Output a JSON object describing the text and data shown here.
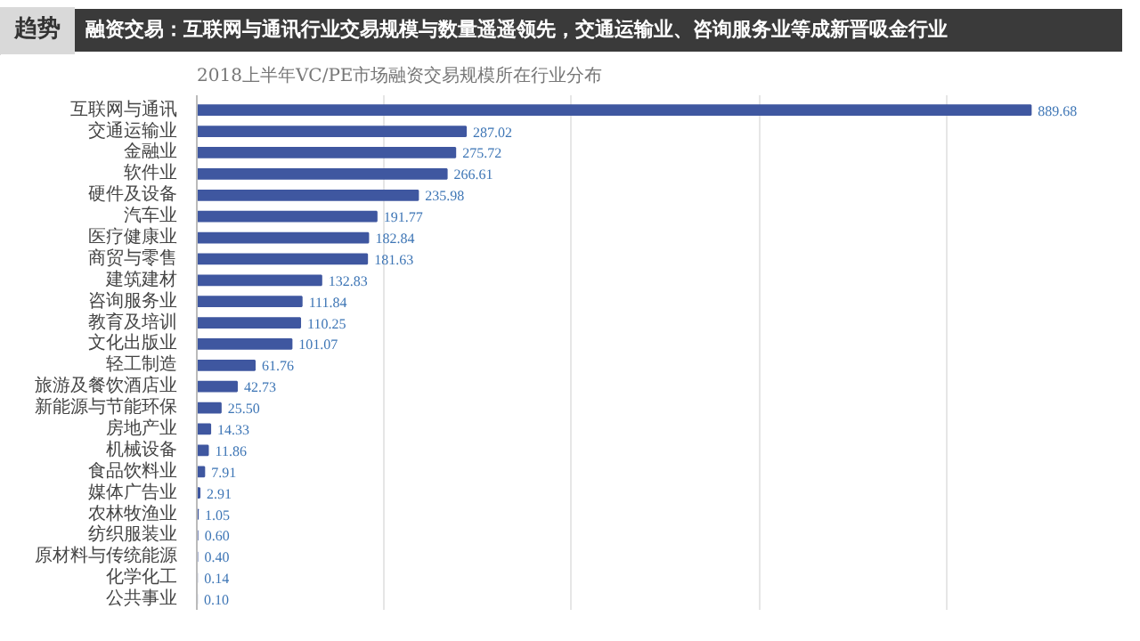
{
  "chart_data": {
    "type": "bar",
    "orientation": "horizontal",
    "title": "融资交易：互联网与通讯行业交易规模与数量遥遥领先，交通运输业、咨询服务业等成新晋吸金行业",
    "subtitle": "2018上半年VC/PE市场融资交易规模所在行业分布",
    "annotations": [
      "趋势"
    ],
    "categories": [
      "互联网与通讯",
      "交通运输业",
      "金融业",
      "软件业",
      "硬件及设备",
      "汽车业",
      "医疗健康业",
      "商贸与零售",
      "建筑建材",
      "咨询服务业",
      "教育及培训",
      "文化出版业",
      "轻工制造",
      "旅游及餐饮酒店业",
      "新能源与节能环保",
      "房地产业",
      "机械设备",
      "食品饮料业",
      "媒体广告业",
      "农林牧渔业",
      "纺织服装业",
      "原材料与传统能源",
      "化学化工",
      "公共事业"
    ],
    "values": [
      889.68,
      287.02,
      275.72,
      266.61,
      235.98,
      191.77,
      182.84,
      181.63,
      132.83,
      111.84,
      110.25,
      101.07,
      61.76,
      42.73,
      25.5,
      14.33,
      11.86,
      7.91,
      2.91,
      1.05,
      0.6,
      0.4,
      0.14,
      0.1
    ],
    "value_labels": [
      "889.68",
      "287.02",
      "275.72",
      "266.61",
      "235.98",
      "191.77",
      "182.84",
      "181.63",
      "132.83",
      "111.84",
      "110.25",
      "101.07",
      "61.76",
      "42.73",
      "25.50",
      "14.33",
      "11.86",
      "7.91",
      "2.91",
      "1.05",
      "0.60",
      "0.40",
      "0.14",
      "0.10"
    ],
    "color": "#3f57a0",
    "grid": "x",
    "tick_labels": "y"
  }
}
